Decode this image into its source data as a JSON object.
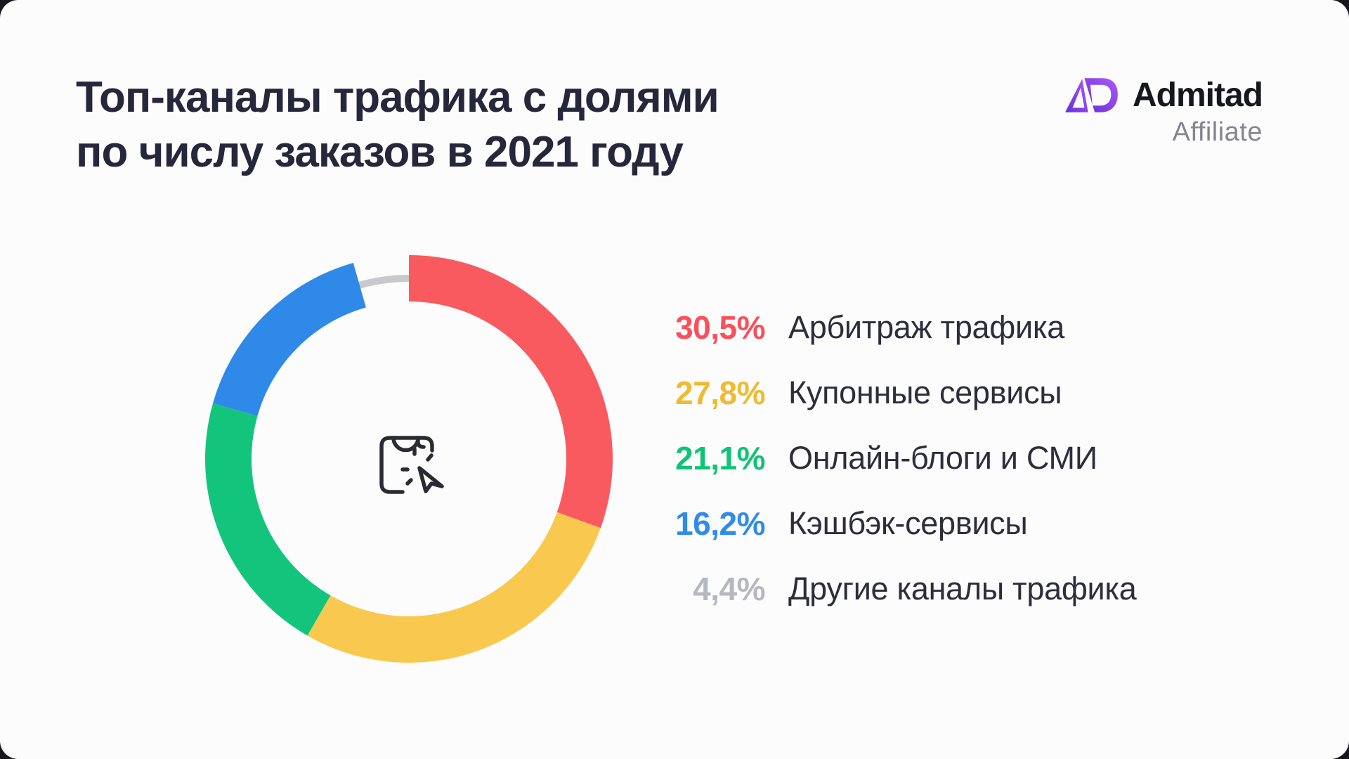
{
  "header": {
    "title_line1": "Топ-каналы трафика с долями",
    "title_line2": "по числу заказов в 2021 году",
    "title_color": "#27273B"
  },
  "logo": {
    "name": "Admitad",
    "subtitle": "Affiliate",
    "mark_gradient_start": "#6C2BD9",
    "mark_gradient_end": "#A85CF8"
  },
  "chart_data": {
    "type": "pie",
    "variant": "donut",
    "title": "Топ-каналы трафика с долями по числу заказов в 2021 году",
    "unit": "%",
    "start_angle_deg": 0,
    "clockwise": true,
    "center_icon": "shopping-bag-click-icon",
    "legend_position": "right",
    "segments": [
      {
        "label": "Арбитраж трафика",
        "value": 30.5,
        "display": "30,5%",
        "color": "#F95A5F",
        "text_color": "#F9505A",
        "style": "ring"
      },
      {
        "label": "Купонные сервисы",
        "value": 27.8,
        "display": "27,8%",
        "color": "#F8C94E",
        "text_color": "#EFBB30",
        "style": "ring"
      },
      {
        "label": "Онлайн-блоги и СМИ",
        "value": 21.1,
        "display": "21,1%",
        "color": "#13C57C",
        "text_color": "#10C377",
        "style": "ring"
      },
      {
        "label": "Кэшбэк-сервисы",
        "value": 16.2,
        "display": "16,2%",
        "color": "#2E89E8",
        "text_color": "#2F8CE8",
        "style": "ring"
      },
      {
        "label": "Другие каналы трафика",
        "value": 4.4,
        "display": "4,4%",
        "color": "#C9C9CD",
        "text_color": "#B5B8BC",
        "style": "thin-arc"
      }
    ]
  }
}
